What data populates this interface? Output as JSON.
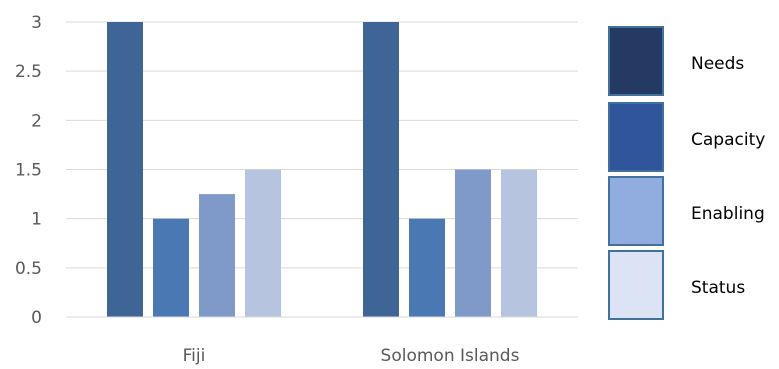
{
  "chart_data": {
    "type": "bar",
    "title": "",
    "xlabel": "",
    "ylabel": "",
    "categories": [
      "Fiji",
      "Solomon Islands"
    ],
    "ylim": [
      0,
      3
    ],
    "yticks": [
      "0",
      "0.5",
      "1",
      "1.5",
      "2",
      "2.5",
      "3"
    ],
    "grid": true,
    "legend_position": "right",
    "series": [
      {
        "name": "Needs",
        "values": [
          3,
          3
        ],
        "color": "#3f6596",
        "legend_color": "#243a62"
      },
      {
        "name": "Capacity",
        "values": [
          1,
          1
        ],
        "color": "#4a78b2",
        "legend_color": "#30559a"
      },
      {
        "name": "Enabling",
        "values": [
          1.25,
          1.5
        ],
        "color": "#7f9ac9",
        "legend_color": "#91acdf"
      },
      {
        "name": "Status",
        "values": [
          1.5,
          1.5
        ],
        "color": "#b6c4df",
        "legend_color": "#dbe3f4"
      }
    ]
  }
}
